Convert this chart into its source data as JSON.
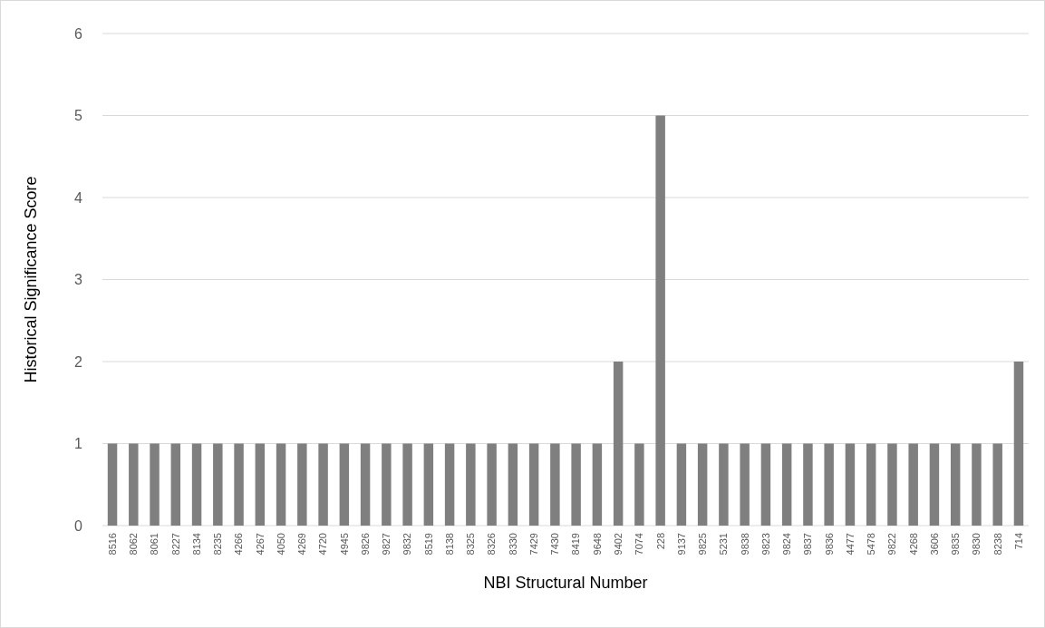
{
  "chart_data": {
    "type": "bar",
    "xlabel": "NBI Structural Number",
    "ylabel": "Historical Significance Score",
    "categories": [
      "8516",
      "8062",
      "8061",
      "8227",
      "8134",
      "8235",
      "4266",
      "4267",
      "4050",
      "4269",
      "4720",
      "4945",
      "9826",
      "9827",
      "9832",
      "8519",
      "8138",
      "8325",
      "8326",
      "8330",
      "7429",
      "7430",
      "8419",
      "9648",
      "9402",
      "7074",
      "228",
      "9137",
      "9825",
      "5231",
      "9838",
      "9823",
      "9824",
      "9837",
      "9836",
      "4477",
      "5478",
      "9822",
      "4268",
      "3606",
      "9835",
      "9830",
      "8238",
      "714"
    ],
    "values": [
      1,
      1,
      1,
      1,
      1,
      1,
      1,
      1,
      1,
      1,
      1,
      1,
      1,
      1,
      1,
      1,
      1,
      1,
      1,
      1,
      1,
      1,
      1,
      1,
      2,
      1,
      5,
      1,
      1,
      1,
      1,
      1,
      1,
      1,
      1,
      1,
      1,
      1,
      1,
      1,
      1,
      1,
      1,
      2
    ],
    "color": "#7f7f7f",
    "ylim": [
      0,
      6
    ],
    "yticks": [
      0,
      1,
      2,
      3,
      4,
      5,
      6
    ],
    "grid": "y"
  }
}
